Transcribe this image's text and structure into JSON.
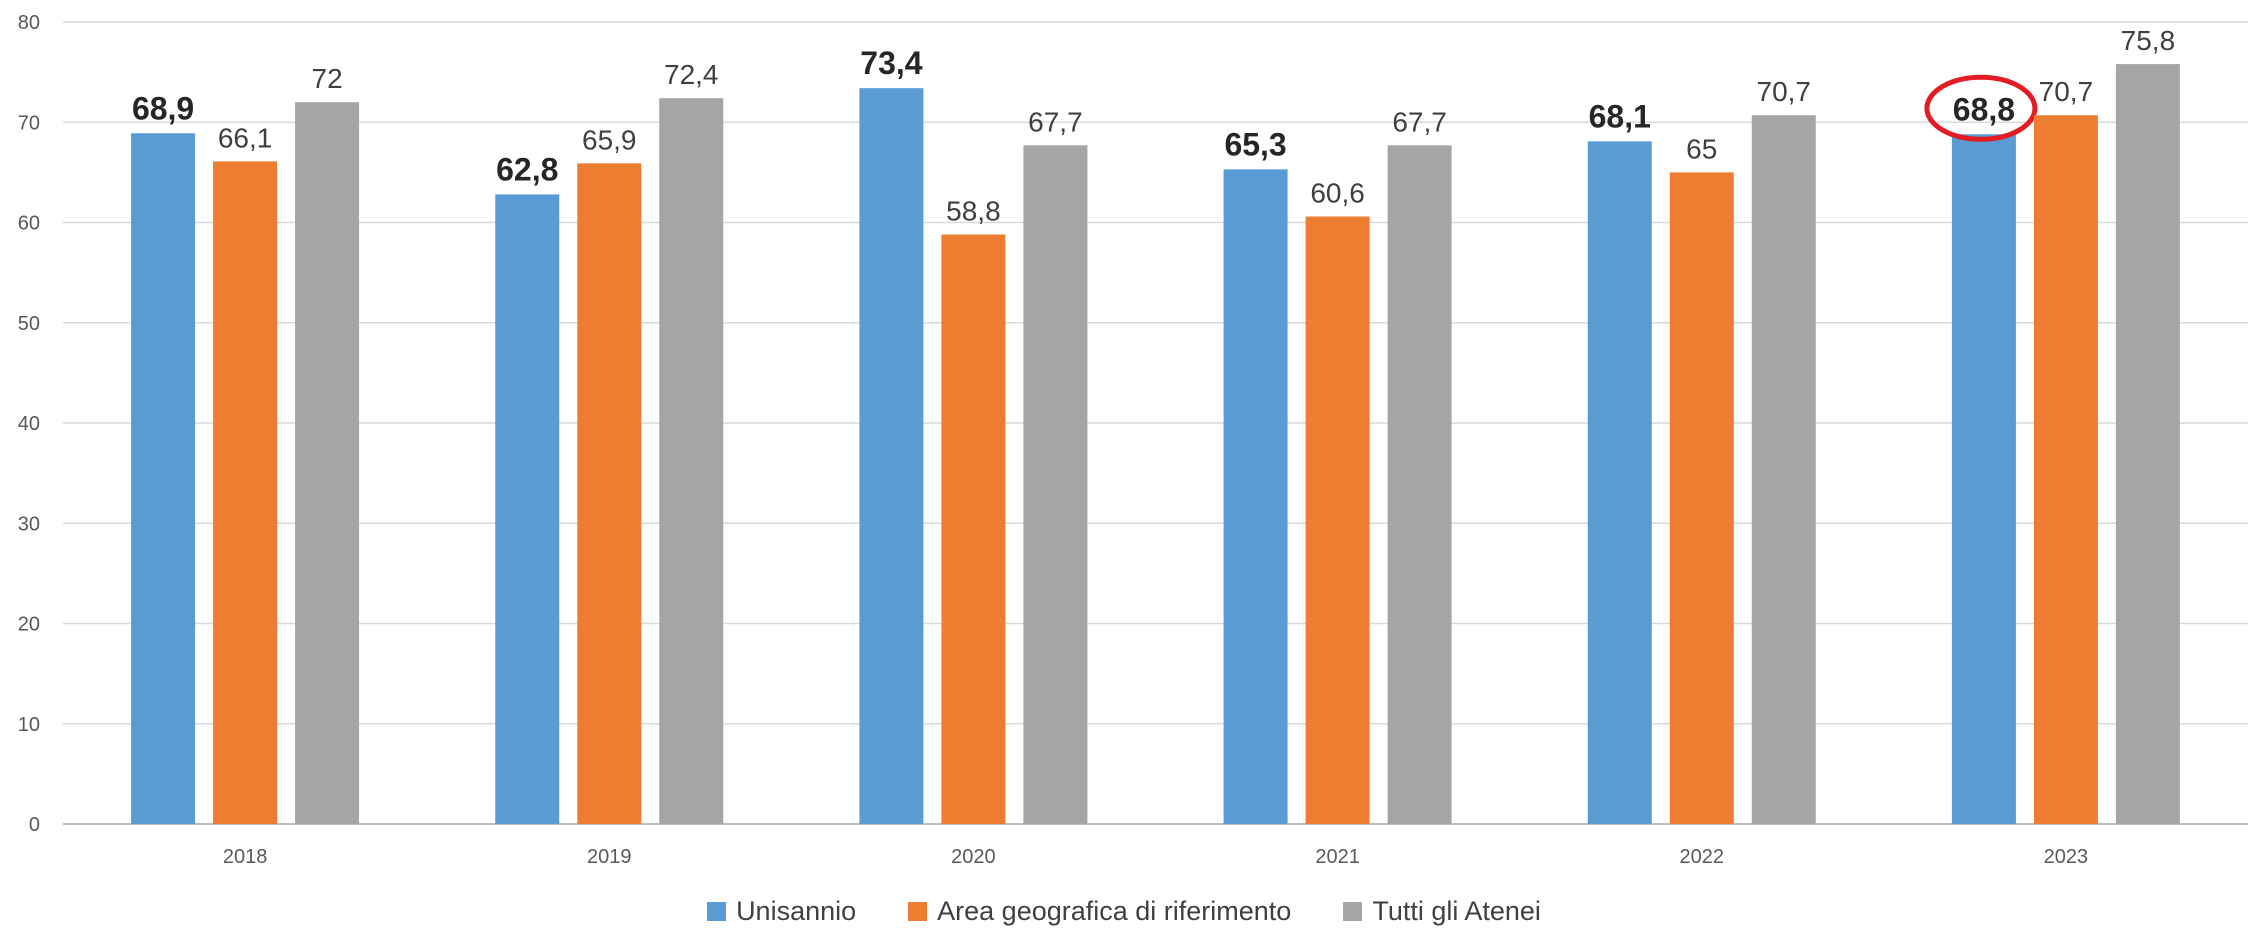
{
  "chart_data": {
    "type": "bar",
    "categories": [
      "2018",
      "2019",
      "2020",
      "2021",
      "2022",
      "2023"
    ],
    "series": [
      {
        "name": "Unisannio",
        "color": "#5B9BD5",
        "values": [
          68.9,
          62.8,
          73.4,
          65.3,
          68.1,
          68.8
        ],
        "labels": [
          "68,9",
          "62,8",
          "73,4",
          "65,3",
          "68,1",
          "68,8"
        ],
        "label_bold": true
      },
      {
        "name": "Area geografica di riferimento",
        "color": "#ED7D31",
        "values": [
          66.1,
          65.9,
          58.8,
          60.6,
          65,
          70.7
        ],
        "labels": [
          "66,1",
          "65,9",
          "58,8",
          "60,6",
          "65",
          "70,7"
        ],
        "label_bold": false
      },
      {
        "name": "Tutti gli Atenei",
        "color": "#A5A5A5",
        "values": [
          72,
          72.4,
          67.7,
          67.7,
          70.7,
          75.8
        ],
        "labels": [
          "72",
          "72,4",
          "67,7",
          "67,7",
          "70,7",
          "75,8"
        ],
        "label_bold": false
      }
    ],
    "ylim": [
      0,
      80
    ],
    "yticks": [
      "0",
      "10",
      "20",
      "30",
      "40",
      "50",
      "60",
      "70",
      "80"
    ],
    "grid": true,
    "legend_position": "bottom",
    "highlight": {
      "series": "Unisannio",
      "category": "2023",
      "shape": "ellipse",
      "color": "#E31B23"
    }
  }
}
